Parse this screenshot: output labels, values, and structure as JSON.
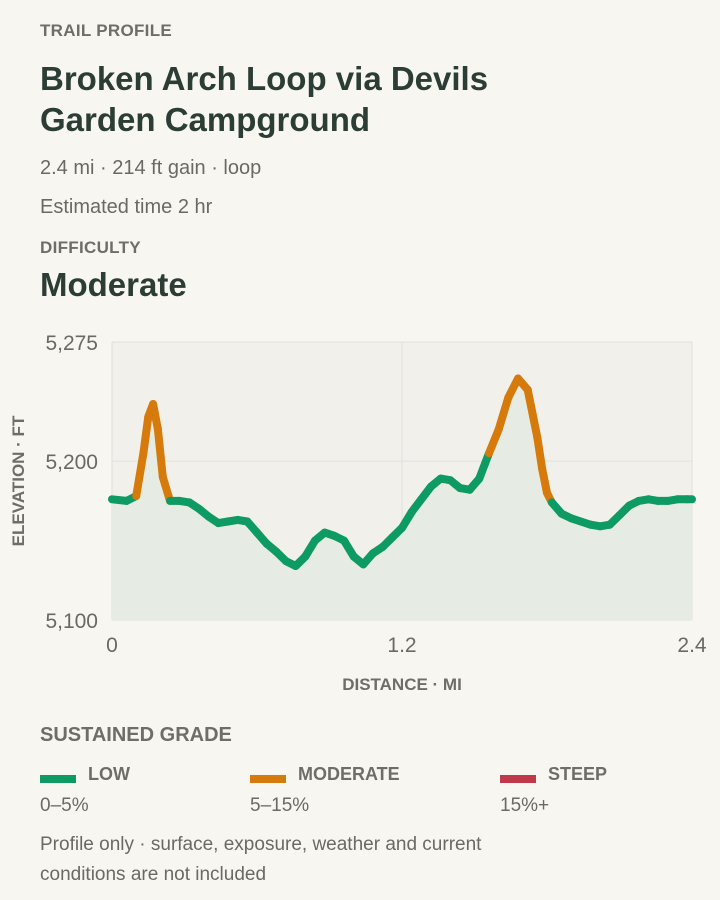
{
  "header": {
    "eyebrow": "TRAIL PROFILE",
    "title": "Broken Arch Loop via Devils Garden Campground",
    "stats": "2.4 mi · 214 ft gain · loop",
    "time": "Estimated time 2 hr",
    "difficulty_label": "DIFFICULTY",
    "difficulty_value": "Moderate"
  },
  "chart_data": {
    "type": "area",
    "xlabel": "DISTANCE · MI",
    "ylabel": "ELEVATION · FT",
    "xlim": [
      0,
      2.4
    ],
    "ylim": [
      5100,
      5275
    ],
    "x_ticks": [
      0,
      1.2,
      2.4
    ],
    "x_tick_labels": [
      "0",
      "1.2",
      "2.4"
    ],
    "y_ticks": [
      5100,
      5200,
      5275
    ],
    "y_tick_labels": [
      "5,100",
      "5,200",
      "5,275"
    ],
    "grid": true,
    "colors": {
      "low": "#0e9a63",
      "moderate": "#d57a0b",
      "steep": "#c0394a",
      "fill": "#e6ece4"
    },
    "series": [
      {
        "x": [
          0,
          0.06,
          0.1,
          0.13,
          0.15,
          0.17,
          0.19,
          0.21,
          0.24,
          0.28,
          0.32,
          0.36,
          0.4,
          0.44,
          0.48,
          0.52,
          0.56,
          0.6,
          0.64,
          0.68,
          0.72,
          0.76,
          0.8,
          0.84,
          0.88,
          0.92,
          0.96,
          1.0,
          1.04,
          1.08,
          1.12,
          1.16,
          1.2,
          1.24,
          1.28,
          1.32,
          1.36,
          1.4,
          1.44,
          1.48,
          1.52,
          1.56,
          1.6,
          1.64,
          1.68,
          1.72,
          1.76,
          1.78,
          1.8,
          1.82,
          1.86,
          1.9,
          1.94,
          1.98,
          2.02,
          2.06,
          2.1,
          2.14,
          2.18,
          2.22,
          2.26,
          2.3,
          2.34,
          2.38,
          2.4
        ],
        "elevation": [
          5176,
          5175,
          5178,
          5205,
          5228,
          5236,
          5220,
          5190,
          5175,
          5175,
          5174,
          5170,
          5165,
          5161,
          5162,
          5163,
          5162,
          5155,
          5148,
          5143,
          5137,
          5134,
          5140,
          5150,
          5155,
          5153,
          5150,
          5140,
          5135,
          5142,
          5146,
          5152,
          5158,
          5168,
          5176,
          5184,
          5189,
          5188,
          5183,
          5182,
          5189,
          5205,
          5220,
          5240,
          5252,
          5245,
          5215,
          5195,
          5180,
          5174,
          5167,
          5164,
          5162,
          5160,
          5159,
          5160,
          5166,
          5172,
          5175,
          5176,
          5175,
          5175,
          5176,
          5176,
          5176
        ],
        "grade": [
          "low",
          "low",
          "moderate",
          "moderate",
          "moderate",
          "moderate",
          "moderate",
          "moderate",
          "low",
          "low",
          "low",
          "low",
          "low",
          "low",
          "low",
          "low",
          "low",
          "low",
          "low",
          "low",
          "low",
          "low",
          "low",
          "low",
          "low",
          "low",
          "low",
          "low",
          "low",
          "low",
          "low",
          "low",
          "low",
          "low",
          "low",
          "low",
          "low",
          "low",
          "low",
          "low",
          "low",
          "moderate",
          "moderate",
          "moderate",
          "moderate",
          "moderate",
          "moderate",
          "moderate",
          "moderate",
          "low",
          "low",
          "low",
          "low",
          "low",
          "low",
          "low",
          "low",
          "low",
          "low",
          "low",
          "low",
          "low",
          "low",
          "low",
          "low"
        ]
      }
    ]
  },
  "legend": {
    "title": "SUSTAINED GRADE",
    "items": [
      {
        "label": "LOW",
        "range": "0–5%",
        "color": "#0e9a63"
      },
      {
        "label": "MODERATE",
        "range": "5–15%",
        "color": "#d57a0b"
      },
      {
        "label": "STEEP",
        "range": "15%+",
        "color": "#c0394a"
      }
    ]
  },
  "footnote": "Profile only · surface, exposure, weather and current conditions are not included"
}
